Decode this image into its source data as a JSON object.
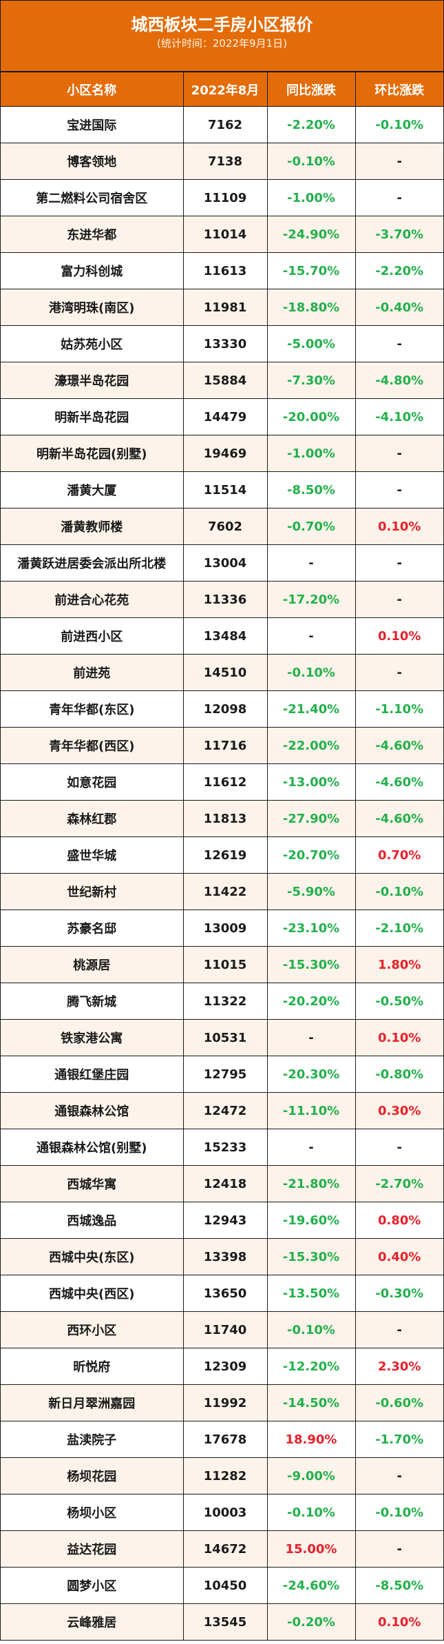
{
  "title": "城西板块二手房小区报价",
  "subtitle": "(统计时间：2022年9月1日)",
  "colors": {
    "header_bg": "#e36c09",
    "up": "#e8202a",
    "down": "#22b04b",
    "neutral": "#1a1a1a"
  },
  "columns": [
    "小区名称",
    "2022年8月",
    "同比涨跌",
    "环比涨跌"
  ],
  "rows": [
    [
      "宝进国际",
      "7162",
      "-2.20%",
      "-0.10%"
    ],
    [
      "博客领地",
      "7138",
      "-0.10%",
      "-"
    ],
    [
      "第二燃料公司宿舍区",
      "11109",
      "-1.00%",
      "-"
    ],
    [
      "东进华都",
      "11014",
      "-24.90%",
      "-3.70%"
    ],
    [
      "富力科创城",
      "11613",
      "-15.70%",
      "-2.20%"
    ],
    [
      "港湾明珠(南区)",
      "11981",
      "-18.80%",
      "-0.40%"
    ],
    [
      "姑苏苑小区",
      "13330",
      "-5.00%",
      "-"
    ],
    [
      "濠璟半岛花园",
      "15884",
      "-7.30%",
      "-4.80%"
    ],
    [
      "明新半岛花园",
      "14479",
      "-20.00%",
      "-4.10%"
    ],
    [
      "明新半岛花园(别墅)",
      "19469",
      "-1.00%",
      "-"
    ],
    [
      "潘黄大厦",
      "11514",
      "-8.50%",
      "-"
    ],
    [
      "潘黄教师楼",
      "7602",
      "-0.70%",
      "0.10%"
    ],
    [
      "潘黄跃进居委会派出所北楼",
      "13004",
      "-",
      "-"
    ],
    [
      "前进合心花苑",
      "11336",
      "-17.20%",
      "-"
    ],
    [
      "前进西小区",
      "13484",
      "-",
      "0.10%"
    ],
    [
      "前进苑",
      "14510",
      "-0.10%",
      "-"
    ],
    [
      "青年华都(东区)",
      "12098",
      "-21.40%",
      "-1.10%"
    ],
    [
      "青年华都(西区)",
      "11716",
      "-22.00%",
      "-4.60%"
    ],
    [
      "如意花园",
      "11612",
      "-13.00%",
      "-4.60%"
    ],
    [
      "森林红郡",
      "11813",
      "-27.90%",
      "-4.60%"
    ],
    [
      "盛世华城",
      "12619",
      "-20.70%",
      "0.70%"
    ],
    [
      "世纪新村",
      "11422",
      "-5.90%",
      "-0.10%"
    ],
    [
      "苏豪名邸",
      "13009",
      "-23.10%",
      "-2.10%"
    ],
    [
      "桃源居",
      "11015",
      "-15.30%",
      "1.80%"
    ],
    [
      "腾飞新城",
      "11322",
      "-20.20%",
      "-0.50%"
    ],
    [
      "铁家港公寓",
      "10531",
      "-",
      "0.10%"
    ],
    [
      "通银红堡庄园",
      "12795",
      "-20.30%",
      "-0.80%"
    ],
    [
      "通银森林公馆",
      "12472",
      "-11.10%",
      "0.30%"
    ],
    [
      "通银森林公馆(别墅)",
      "15233",
      "-",
      "-"
    ],
    [
      "西城华寓",
      "12418",
      "-21.80%",
      "-2.70%"
    ],
    [
      "西城逸品",
      "12943",
      "-19.60%",
      "0.80%"
    ],
    [
      "西城中央(东区)",
      "13398",
      "-15.30%",
      "0.40%"
    ],
    [
      "西城中央(西区)",
      "13650",
      "-13.50%",
      "-0.30%"
    ],
    [
      "西环小区",
      "11740",
      "-0.10%",
      "-"
    ],
    [
      "昕悦府",
      "12309",
      "-12.20%",
      "2.30%"
    ],
    [
      "新日月翠洲嘉园",
      "11992",
      "-14.50%",
      "-0.60%"
    ],
    [
      "盐渎院子",
      "17678",
      "18.90%",
      "-1.70%"
    ],
    [
      "杨坝花园",
      "11282",
      "-9.00%",
      "-"
    ],
    [
      "杨坝小区",
      "10003",
      "-0.10%",
      "-0.10%"
    ],
    [
      "益达花园",
      "14672",
      "15.00%",
      "-"
    ],
    [
      "圆梦小区",
      "10450",
      "-24.60%",
      "-8.50%"
    ],
    [
      "云峰雅居",
      "13545",
      "-0.20%",
      "0.10%"
    ]
  ]
}
